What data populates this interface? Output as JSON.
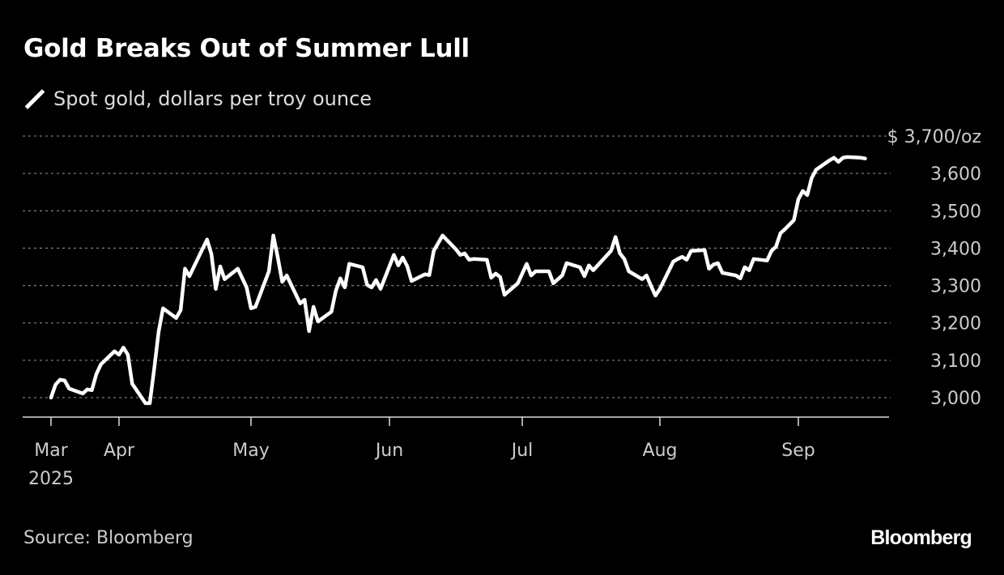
{
  "chart_data": {
    "type": "line",
    "title": "Gold Breaks Out of Summer Lull",
    "legend": [
      {
        "name": "Spot gold, dollars per troy ounce",
        "color": "#ffffff"
      }
    ],
    "legend_placement": "top-left",
    "ylim": [
      2960,
      3720
    ],
    "y_ticks": [
      3000,
      3100,
      3200,
      3300,
      3400,
      3500,
      3600,
      3700
    ],
    "y_tick_labels": [
      "3,000",
      "3,100",
      "3,200",
      "3,300",
      "3,400",
      "3,500",
      "3,600",
      "$ 3,700/oz"
    ],
    "x_ticks": [
      {
        "date": "2025-03-17",
        "label": "Mar",
        "sublabel": "2025"
      },
      {
        "date": "2025-04-01",
        "label": "Apr"
      },
      {
        "date": "2025-05-01",
        "label": "May"
      },
      {
        "date": "2025-06-01",
        "label": "Jun"
      },
      {
        "date": "2025-07-01",
        "label": "Jul"
      },
      {
        "date": "2025-08-01",
        "label": "Aug"
      },
      {
        "date": "2025-09-01",
        "label": "Sep"
      }
    ],
    "grid": "horizontal-dotted",
    "series": [
      {
        "name": "Spot gold, dollars per troy ounce",
        "color": "#ffffff",
        "points": [
          [
            "2025-03-17",
            3000
          ],
          [
            "2025-03-18",
            3035
          ],
          [
            "2025-03-19",
            3048
          ],
          [
            "2025-03-20",
            3046
          ],
          [
            "2025-03-21",
            3024
          ],
          [
            "2025-03-24",
            3011
          ],
          [
            "2025-03-25",
            3022
          ],
          [
            "2025-03-26",
            3020
          ],
          [
            "2025-03-27",
            3063
          ],
          [
            "2025-03-28",
            3089
          ],
          [
            "2025-03-31",
            3124
          ],
          [
            "2025-04-01",
            3115
          ],
          [
            "2025-04-02",
            3134
          ],
          [
            "2025-04-03",
            3115
          ],
          [
            "2025-04-04",
            3037
          ],
          [
            "2025-04-07",
            2985
          ],
          [
            "2025-04-08",
            2985
          ],
          [
            "2025-04-09",
            3078
          ],
          [
            "2025-04-10",
            3176
          ],
          [
            "2025-04-11",
            3239
          ],
          [
            "2025-04-14",
            3213
          ],
          [
            "2025-04-15",
            3234
          ],
          [
            "2025-04-16",
            3345
          ],
          [
            "2025-04-17",
            3325
          ],
          [
            "2025-04-21",
            3423
          ],
          [
            "2025-04-22",
            3384
          ],
          [
            "2025-04-23",
            3291
          ],
          [
            "2025-04-24",
            3351
          ],
          [
            "2025-04-25",
            3317
          ],
          [
            "2025-04-28",
            3345
          ],
          [
            "2025-04-30",
            3295
          ],
          [
            "2025-05-01",
            3239
          ],
          [
            "2025-05-02",
            3243
          ],
          [
            "2025-05-05",
            3338
          ],
          [
            "2025-05-06",
            3434
          ],
          [
            "2025-05-07",
            3375
          ],
          [
            "2025-05-08",
            3310
          ],
          [
            "2025-05-09",
            3327
          ],
          [
            "2025-05-12",
            3252
          ],
          [
            "2025-05-13",
            3262
          ],
          [
            "2025-05-14",
            3178
          ],
          [
            "2025-05-15",
            3243
          ],
          [
            "2025-05-16",
            3204
          ],
          [
            "2025-05-19",
            3230
          ],
          [
            "2025-05-20",
            3286
          ],
          [
            "2025-05-21",
            3319
          ],
          [
            "2025-05-22",
            3295
          ],
          [
            "2025-05-23",
            3358
          ],
          [
            "2025-05-26",
            3349
          ],
          [
            "2025-05-27",
            3302
          ],
          [
            "2025-05-28",
            3295
          ],
          [
            "2025-05-29",
            3315
          ],
          [
            "2025-05-30",
            3291
          ],
          [
            "2025-06-02",
            3382
          ],
          [
            "2025-06-03",
            3354
          ],
          [
            "2025-06-04",
            3375
          ],
          [
            "2025-06-05",
            3352
          ],
          [
            "2025-06-06",
            3312
          ],
          [
            "2025-06-09",
            3330
          ],
          [
            "2025-06-10",
            3328
          ],
          [
            "2025-06-11",
            3393
          ],
          [
            "2025-06-13",
            3434
          ],
          [
            "2025-06-16",
            3397
          ],
          [
            "2025-06-17",
            3382
          ],
          [
            "2025-06-18",
            3386
          ],
          [
            "2025-06-19",
            3369
          ],
          [
            "2025-06-20",
            3371
          ],
          [
            "2025-06-23",
            3369
          ],
          [
            "2025-06-24",
            3321
          ],
          [
            "2025-06-25",
            3332
          ],
          [
            "2025-06-26",
            3323
          ],
          [
            "2025-06-27",
            3275
          ],
          [
            "2025-06-30",
            3306
          ],
          [
            "2025-07-02",
            3358
          ],
          [
            "2025-07-03",
            3327
          ],
          [
            "2025-07-04",
            3338
          ],
          [
            "2025-07-07",
            3338
          ],
          [
            "2025-07-08",
            3306
          ],
          [
            "2025-07-10",
            3327
          ],
          [
            "2025-07-11",
            3360
          ],
          [
            "2025-07-14",
            3349
          ],
          [
            "2025-07-15",
            3325
          ],
          [
            "2025-07-16",
            3354
          ],
          [
            "2025-07-17",
            3341
          ],
          [
            "2025-07-21",
            3393
          ],
          [
            "2025-07-22",
            3430
          ],
          [
            "2025-07-23",
            3386
          ],
          [
            "2025-07-24",
            3371
          ],
          [
            "2025-07-25",
            3338
          ],
          [
            "2025-07-28",
            3317
          ],
          [
            "2025-07-29",
            3327
          ],
          [
            "2025-07-30",
            3299
          ],
          [
            "2025-07-31",
            3273
          ],
          [
            "2025-08-01",
            3291
          ],
          [
            "2025-08-04",
            3364
          ],
          [
            "2025-08-05",
            3371
          ],
          [
            "2025-08-06",
            3377
          ],
          [
            "2025-08-07",
            3369
          ],
          [
            "2025-08-08",
            3393
          ],
          [
            "2025-08-11",
            3395
          ],
          [
            "2025-08-12",
            3345
          ],
          [
            "2025-08-13",
            3356
          ],
          [
            "2025-08-14",
            3360
          ],
          [
            "2025-08-15",
            3334
          ],
          [
            "2025-08-18",
            3327
          ],
          [
            "2025-08-19",
            3319
          ],
          [
            "2025-08-20",
            3349
          ],
          [
            "2025-08-21",
            3341
          ],
          [
            "2025-08-22",
            3371
          ],
          [
            "2025-08-25",
            3367
          ],
          [
            "2025-08-26",
            3393
          ],
          [
            "2025-08-27",
            3404
          ],
          [
            "2025-08-28",
            3440
          ],
          [
            "2025-08-29",
            3451
          ],
          [
            "2025-08-31",
            3475
          ],
          [
            "2025-09-01",
            3531
          ],
          [
            "2025-09-02",
            3553
          ],
          [
            "2025-09-03",
            3542
          ],
          [
            "2025-09-04",
            3588
          ],
          [
            "2025-09-05",
            3610
          ],
          [
            "2025-09-08",
            3635
          ],
          [
            "2025-09-09",
            3642
          ],
          [
            "2025-09-10",
            3631
          ],
          [
            "2025-09-11",
            3642
          ],
          [
            "2025-09-12",
            3644
          ],
          [
            "2025-09-15",
            3642
          ],
          [
            "2025-09-16",
            3640
          ]
        ]
      }
    ]
  },
  "source": "Source: Bloomberg",
  "logo": "Bloomberg"
}
